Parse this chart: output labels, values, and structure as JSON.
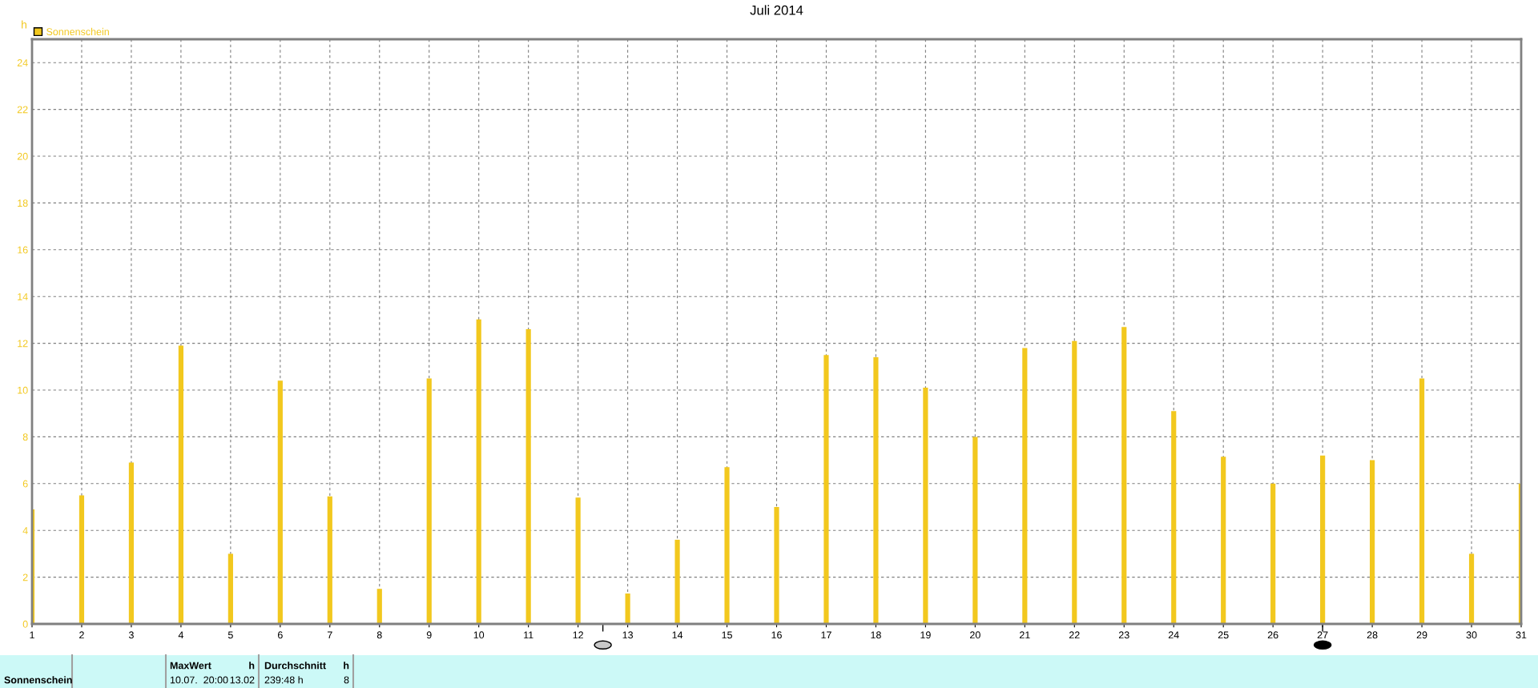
{
  "chart_data": {
    "type": "bar",
    "title": "Juli 2014",
    "ylabel": "h",
    "x": [
      1,
      2,
      3,
      4,
      5,
      6,
      7,
      8,
      9,
      10,
      11,
      12,
      13,
      14,
      15,
      16,
      17,
      18,
      19,
      20,
      21,
      22,
      23,
      24,
      25,
      26,
      27,
      28,
      29,
      30,
      31
    ],
    "series": [
      {
        "name": "Sonnenschein",
        "color": "#f2c81e",
        "values": [
          4.9,
          5.5,
          6.9,
          11.9,
          3.0,
          10.4,
          5.45,
          1.5,
          10.5,
          13.02,
          12.6,
          5.4,
          1.3,
          3.6,
          6.7,
          5.0,
          11.5,
          11.4,
          10.1,
          8.0,
          11.8,
          12.1,
          12.7,
          9.1,
          7.15,
          6.0,
          7.2,
          7.0,
          10.5,
          3.0,
          6.0
        ]
      }
    ],
    "xlim": [
      1,
      31
    ],
    "xticks": [
      1,
      2,
      3,
      4,
      5,
      6,
      7,
      8,
      9,
      10,
      11,
      12,
      13,
      14,
      15,
      16,
      17,
      18,
      19,
      20,
      21,
      22,
      23,
      24,
      25,
      26,
      27,
      28,
      29,
      30,
      31
    ],
    "ylim": [
      0,
      25
    ],
    "yticks": [
      0,
      2,
      4,
      6,
      8,
      10,
      12,
      14,
      16,
      18,
      20,
      22,
      24
    ],
    "grid": true,
    "legend": "top left",
    "annotations": [
      "Sonnenschein",
      "MaxWert",
      "h",
      "10.07.  20:00",
      "13.02",
      "Durchschnitt",
      "h",
      "239:48 h",
      "8"
    ]
  }
}
